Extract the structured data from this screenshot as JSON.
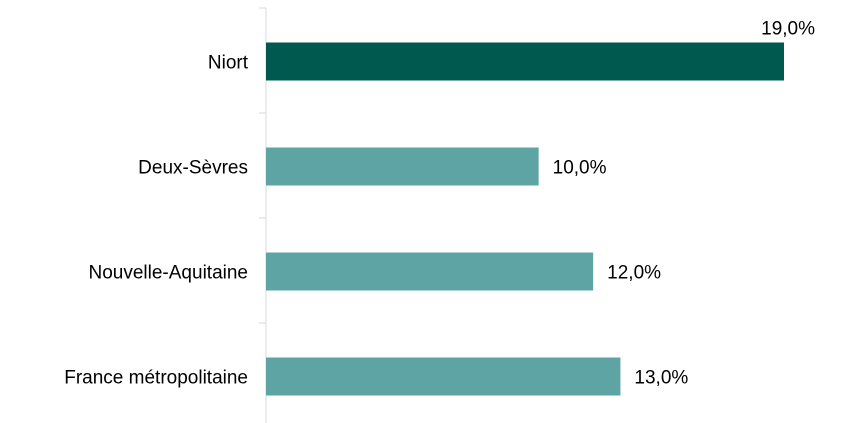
{
  "chart_data": {
    "type": "bar",
    "orientation": "horizontal",
    "categories": [
      "Niort",
      "Deux-Sèvres",
      "Nouvelle-Aquitaine",
      "France métropolitaine"
    ],
    "values": [
      19.0,
      10.0,
      12.0,
      13.0
    ],
    "value_labels": [
      "19,0%",
      "10,0%",
      "12,0%",
      "13,0%"
    ],
    "xlim": [
      0,
      19.0
    ],
    "grid": false,
    "legend": "none",
    "colors": [
      "#00594e",
      "#5fa4a5",
      "#5fa4a5",
      "#5fa4a5"
    ],
    "axis_color": "#d9d9d9"
  }
}
